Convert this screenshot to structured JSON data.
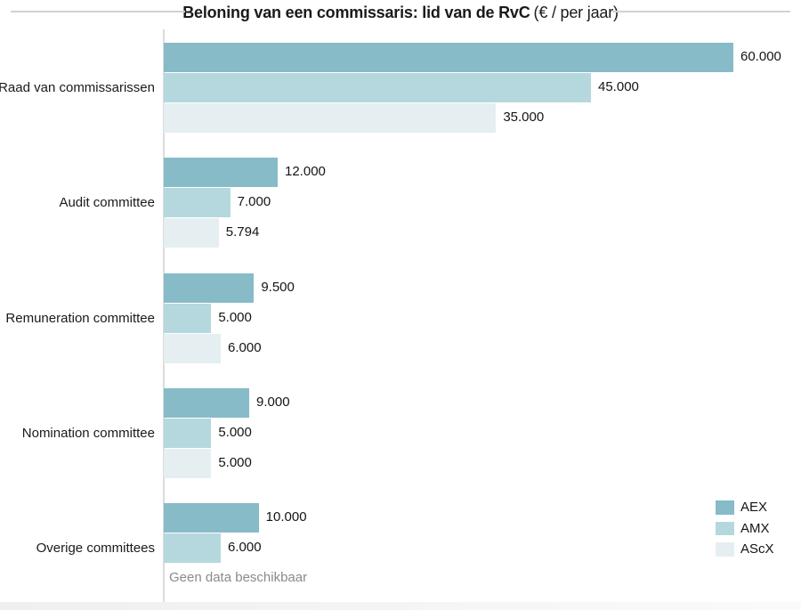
{
  "title": {
    "main": "Beloning van een commissaris: lid van de RvC",
    "unit": "(€ / per jaar)"
  },
  "legend": {
    "position": "bottom-right",
    "items": [
      {
        "label": "AEX",
        "color": "#86bbc7"
      },
      {
        "label": "AMX",
        "color": "#b5d8de"
      },
      {
        "label": "AScX",
        "color": "#e5eff1"
      }
    ]
  },
  "no_data_text": "Geen data beschikbaar",
  "colors": {
    "aex": "#86bbc7",
    "amx": "#b5d8de",
    "ascx": "#e5eff1",
    "axis_line": "#dcdcdc",
    "title_rule": "#d2d2d2",
    "value_text": "#141414",
    "no_data_text": "#8a8a8a"
  },
  "chart_data": {
    "type": "bar",
    "orientation": "horizontal",
    "title": "Beloning van een commissaris: lid van de RvC (€ / per jaar)",
    "categories": [
      "Raad van commissarissen",
      "Audit committee",
      "Remuneration committee",
      "Nomination committee",
      "Overige committees"
    ],
    "series": [
      {
        "name": "AEX",
        "color": "#86bbc7",
        "values": [
          60000,
          12000,
          9500,
          9000,
          10000
        ]
      },
      {
        "name": "AMX",
        "color": "#b5d8de",
        "values": [
          45000,
          7000,
          5000,
          5000,
          6000
        ]
      },
      {
        "name": "AScX",
        "color": "#e5eff1",
        "values": [
          35000,
          5794,
          6000,
          5000,
          null
        ]
      }
    ],
    "value_labels": [
      [
        "60.000",
        "45.000",
        "35.000"
      ],
      [
        "12.000",
        "7.000",
        "5.794"
      ],
      [
        "9.500",
        "5.000",
        "6.000"
      ],
      [
        "9.000",
        "5.000",
        "5.000"
      ],
      [
        "10.000",
        "6.000",
        "Geen data beschikbaar"
      ]
    ],
    "xlim": [
      0,
      60000
    ],
    "grid": false,
    "legend_position": "bottom-right",
    "no_data_label": "Geen data beschikbaar",
    "value_label_format": "thousands-dot"
  }
}
